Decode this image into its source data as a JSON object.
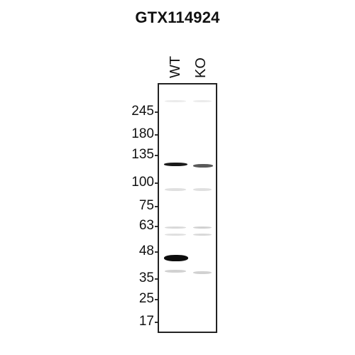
{
  "title": "GTX114924",
  "lanes": [
    "WT",
    "KO"
  ],
  "markers": [
    "245",
    "180",
    "135",
    "100",
    "75",
    "63",
    "48",
    "35",
    "25",
    "17"
  ]
}
